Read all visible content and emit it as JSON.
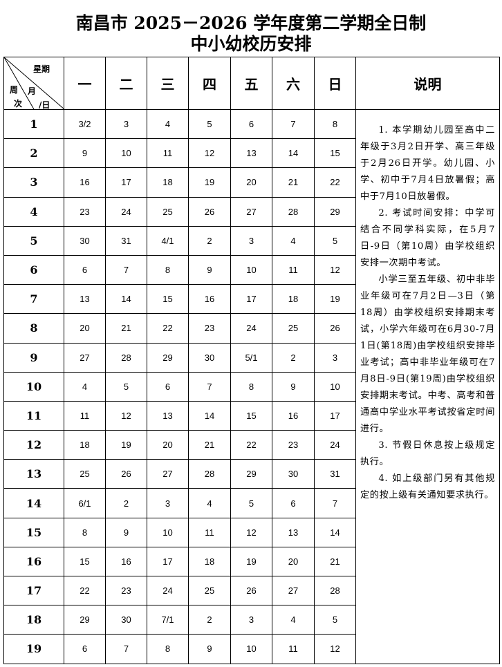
{
  "title_line1": "南昌市 2025－2026 学年度第二学期全日制",
  "title_line2": "中小幼校历安排",
  "corner": {
    "weekday": "星期",
    "month": "月",
    "day": "/日",
    "week1": "周",
    "week2": "次"
  },
  "weekdays": [
    "一",
    "二",
    "三",
    "四",
    "五",
    "六",
    "日"
  ],
  "notes_header": "说明",
  "weeks": [
    {
      "n": "1",
      "days": [
        "3/2",
        "3",
        "4",
        "5",
        "6",
        "7",
        "8"
      ]
    },
    {
      "n": "2",
      "days": [
        "9",
        "10",
        "11",
        "12",
        "13",
        "14",
        "15"
      ]
    },
    {
      "n": "3",
      "days": [
        "16",
        "17",
        "18",
        "19",
        "20",
        "21",
        "22"
      ]
    },
    {
      "n": "4",
      "days": [
        "23",
        "24",
        "25",
        "26",
        "27",
        "28",
        "29"
      ]
    },
    {
      "n": "5",
      "days": [
        "30",
        "31",
        "4/1",
        "2",
        "3",
        "4",
        "5"
      ]
    },
    {
      "n": "6",
      "days": [
        "6",
        "7",
        "8",
        "9",
        "10",
        "11",
        "12"
      ]
    },
    {
      "n": "7",
      "days": [
        "13",
        "14",
        "15",
        "16",
        "17",
        "18",
        "19"
      ]
    },
    {
      "n": "8",
      "days": [
        "20",
        "21",
        "22",
        "23",
        "24",
        "25",
        "26"
      ]
    },
    {
      "n": "9",
      "days": [
        "27",
        "28",
        "29",
        "30",
        "5/1",
        "2",
        "3"
      ]
    },
    {
      "n": "10",
      "days": [
        "4",
        "5",
        "6",
        "7",
        "8",
        "9",
        "10"
      ]
    },
    {
      "n": "11",
      "days": [
        "11",
        "12",
        "13",
        "14",
        "15",
        "16",
        "17"
      ]
    },
    {
      "n": "12",
      "days": [
        "18",
        "19",
        "20",
        "21",
        "22",
        "23",
        "24"
      ]
    },
    {
      "n": "13",
      "days": [
        "25",
        "26",
        "27",
        "28",
        "29",
        "30",
        "31"
      ]
    },
    {
      "n": "14",
      "days": [
        "6/1",
        "2",
        "3",
        "4",
        "5",
        "6",
        "7"
      ]
    },
    {
      "n": "15",
      "days": [
        "8",
        "9",
        "10",
        "11",
        "12",
        "13",
        "14"
      ]
    },
    {
      "n": "16",
      "days": [
        "15",
        "16",
        "17",
        "18",
        "19",
        "20",
        "21"
      ]
    },
    {
      "n": "17",
      "days": [
        "22",
        "23",
        "24",
        "25",
        "26",
        "27",
        "28"
      ]
    },
    {
      "n": "18",
      "days": [
        "29",
        "30",
        "7/1",
        "2",
        "3",
        "4",
        "5"
      ]
    },
    {
      "n": "19",
      "days": [
        "6",
        "7",
        "8",
        "9",
        "10",
        "11",
        "12"
      ]
    }
  ],
  "notes": [
    "1. 本学期幼儿园至高中二年级于3月2日开学、高三年级于2月26日开学。幼儿园、小学、初中于7月4日放暑假；高中于7月10日放暑假。",
    "2. 考试时间安排：中学可结合不同学科实际，在5月7日-9日（第10周）由学校组织安排一次期中考试。",
    "小学三至五年级、初中非毕业年级可在7月2日—3日（第18周）由学校组织安排期末考试，小学六年级可在6月30-7月1日(第18周)由学校组织安排毕业考试；高中非毕业年级可在7月8日-9日(第19周)由学校组织安排期末考试。中考、高考和普通高中学业水平考试按省定时间进行。",
    "3. 节假日休息按上级规定执行。",
    "4. 如上级部门另有其他规定的按上级有关通知要求执行。"
  ]
}
